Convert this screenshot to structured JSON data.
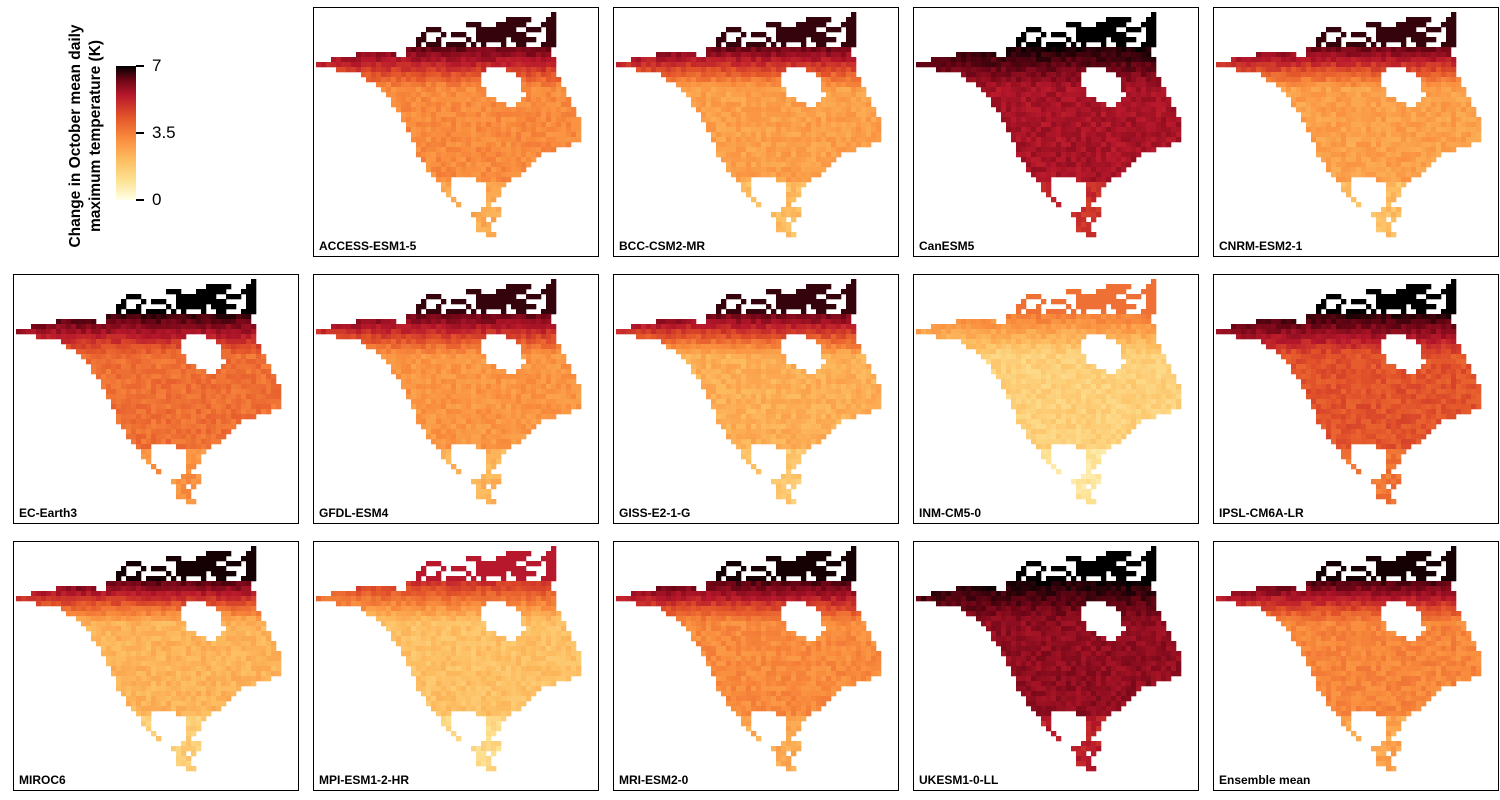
{
  "legend": {
    "title_line1": "Change in October mean daily",
    "title_line2": "maximum temperature (K)",
    "ticks": [
      {
        "value": 7,
        "label": "7"
      },
      {
        "value": 3.5,
        "label": "3.5"
      },
      {
        "value": 0,
        "label": "0"
      }
    ],
    "range": [
      0,
      7
    ],
    "colors": [
      "#ffffe6",
      "#fde395",
      "#fdbd60",
      "#f98c3d",
      "#e3542a",
      "#b8182b",
      "#6a0515",
      "#000000"
    ]
  },
  "panels": [
    {
      "label": "ACCESS-ESM1-5",
      "mean_change": 3.0,
      "arctic_change": 6.5
    },
    {
      "label": "BCC-CSM2-MR",
      "mean_change": 2.6,
      "arctic_change": 6.5
    },
    {
      "label": "CanESM5",
      "mean_change": 5.2,
      "arctic_change": 7.0
    },
    {
      "label": "CNRM-ESM2-1",
      "mean_change": 2.6,
      "arctic_change": 6.5
    },
    {
      "label": "EC-Earth3",
      "mean_change": 3.5,
      "arctic_change": 7.0
    },
    {
      "label": "GFDL-ESM4",
      "mean_change": 2.8,
      "arctic_change": 6.5
    },
    {
      "label": "GISS-E2-1-G",
      "mean_change": 2.3,
      "arctic_change": 6.5
    },
    {
      "label": "INM-CM5-0",
      "mean_change": 1.5,
      "arctic_change": 3.5
    },
    {
      "label": "IPSL-CM6A-LR",
      "mean_change": 4.0,
      "arctic_change": 7.0
    },
    {
      "label": "MIROC6",
      "mean_change": 2.2,
      "arctic_change": 6.8
    },
    {
      "label": "MPI-ESM1-2-HR",
      "mean_change": 1.9,
      "arctic_change": 5.0
    },
    {
      "label": "MRI-ESM2-0",
      "mean_change": 3.0,
      "arctic_change": 6.8
    },
    {
      "label": "UKESM1-0-LL",
      "mean_change": 5.5,
      "arctic_change": 7.0
    },
    {
      "label": "Ensemble mean",
      "mean_change": 3.1,
      "arctic_change": 6.8
    }
  ]
}
